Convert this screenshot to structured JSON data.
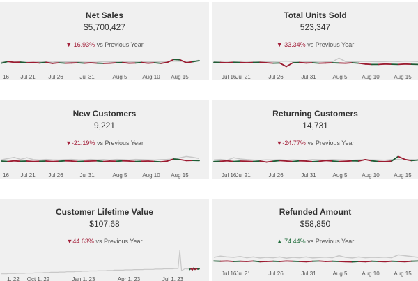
{
  "colors": {
    "current_year_line": "#1f5c35",
    "previous_year_line": "#c8c8c8",
    "decline_line": "#9b1b30",
    "decline_text": "#a3203a",
    "increase_text": "#1f6b3a",
    "card_background": "#f0f0f0"
  },
  "comparison_suffix": "vs Previous Year",
  "chart_data": [
    {
      "type": "line",
      "title": "Net Sales",
      "kpi_value": "$5,700,427",
      "change": {
        "direction": "down",
        "text": "16.93%"
      },
      "x_ticks": [
        "16",
        "Jul 21",
        "Jul 26",
        "Jul 31",
        "Aug 5",
        "Aug 10",
        "Aug 15"
      ],
      "ylim": [
        0,
        100
      ],
      "series": [
        {
          "role": "previous_year",
          "values": [
            52,
            58,
            56,
            54,
            53,
            52,
            55,
            54,
            53,
            56,
            54,
            55,
            54,
            53,
            52,
            53,
            56,
            55,
            54,
            53,
            55,
            56,
            57,
            54,
            55,
            54,
            56,
            58,
            57,
            56,
            58,
            62
          ]
        },
        {
          "role": "current_year",
          "values": [
            48,
            56,
            52,
            53,
            50,
            51,
            49,
            52,
            47,
            50,
            48,
            49,
            50,
            48,
            50,
            48,
            47,
            48,
            50,
            51,
            48,
            49,
            51,
            48,
            50,
            47,
            52,
            66,
            64,
            50,
            55,
            60
          ]
        }
      ]
    },
    {
      "type": "line",
      "title": "Total Units Sold",
      "kpi_value": "523,347",
      "change": {
        "direction": "down",
        "text": "33.34%"
      },
      "x_ticks": [
        "Jul 16",
        "Jul 21",
        "Jul 26",
        "Jul 31",
        "Aug 5",
        "Aug 10",
        "Aug 15"
      ],
      "ylim": [
        0,
        100
      ],
      "series": [
        {
          "role": "previous_year",
          "values": [
            57,
            58,
            57,
            56,
            58,
            57,
            56,
            57,
            55,
            56,
            57,
            58,
            56,
            57,
            56,
            55,
            57,
            56,
            55,
            72,
            56,
            55,
            56,
            57,
            56,
            55,
            56,
            57,
            56,
            58,
            57,
            56
          ]
        },
        {
          "role": "current_year",
          "values": [
            52,
            51,
            50,
            52,
            51,
            50,
            51,
            52,
            50,
            48,
            49,
            32,
            50,
            51,
            49,
            50,
            48,
            49,
            50,
            49,
            48,
            50,
            48,
            44,
            42,
            42,
            44,
            43,
            42,
            44,
            43,
            42
          ]
        }
      ]
    },
    {
      "type": "line",
      "title": "New Customers",
      "kpi_value": "9,221",
      "change": {
        "direction": "down",
        "text": "-21.19%"
      },
      "x_ticks": [
        "16",
        "Jul 21",
        "Jul 26",
        "Jul 31",
        "Aug 5",
        "Aug 10",
        "Aug 15"
      ],
      "ylim": [
        0,
        100
      ],
      "series": [
        {
          "role": "previous_year",
          "values": [
            56,
            62,
            68,
            58,
            66,
            57,
            55,
            58,
            56,
            55,
            57,
            58,
            56,
            55,
            58,
            56,
            57,
            55,
            58,
            57,
            55,
            58,
            57,
            56,
            55,
            57,
            58,
            60,
            66,
            72,
            68,
            62
          ]
        },
        {
          "role": "current_year",
          "values": [
            50,
            48,
            51,
            49,
            50,
            48,
            49,
            50,
            48,
            49,
            51,
            50,
            48,
            49,
            50,
            51,
            48,
            50,
            49,
            51,
            50,
            48,
            49,
            50,
            48,
            46,
            50,
            60,
            57,
            52,
            53,
            52
          ]
        }
      ]
    },
    {
      "type": "line",
      "title": "Returning Customers",
      "kpi_value": "14,731",
      "change": {
        "direction": "down",
        "text": "-24.77%"
      },
      "x_ticks": [
        "Jul 16",
        "Jul 21",
        "Jul 26",
        "Jul 31",
        "Aug 5",
        "Aug 10",
        "Aug 15"
      ],
      "ylim": [
        0,
        100
      ],
      "series": [
        {
          "role": "previous_year",
          "values": [
            56,
            58,
            54,
            66,
            60,
            57,
            55,
            54,
            56,
            55,
            57,
            54,
            56,
            55,
            54,
            57,
            56,
            55,
            57,
            56,
            55,
            54,
            56,
            57,
            56,
            55,
            54,
            57,
            58,
            56,
            57,
            56
          ]
        },
        {
          "role": "current_year",
          "values": [
            48,
            49,
            51,
            48,
            50,
            49,
            48,
            50,
            45,
            49,
            52,
            50,
            48,
            51,
            50,
            47,
            49,
            52,
            50,
            48,
            49,
            51,
            50,
            57,
            51,
            48,
            47,
            50,
            72,
            58,
            52,
            55
          ]
        }
      ]
    },
    {
      "type": "line",
      "title": "Customer Lifetime Value",
      "kpi_value": "$107.68",
      "change": {
        "direction": "down",
        "text": "44.63%"
      },
      "x_ticks": [
        "1, 22",
        "Oct 1, 22",
        "Jan 1, 23",
        "Apr 1, 23",
        "Jul 1, 23"
      ],
      "ylim": [
        0,
        100
      ],
      "series": [
        {
          "role": "previous_year",
          "values": [
            6,
            6,
            6,
            6,
            7,
            7,
            7,
            7,
            7,
            8,
            8,
            8,
            8,
            8,
            9,
            9,
            9,
            9,
            9,
            10,
            10,
            10,
            10,
            10,
            11,
            11,
            11,
            11,
            12,
            12,
            12,
            12,
            12,
            13,
            13,
            13,
            13,
            14,
            14,
            14,
            14,
            14,
            15,
            15,
            15,
            15,
            16,
            16,
            16,
            16,
            17,
            17,
            17,
            17,
            17,
            18,
            18,
            18,
            18,
            18,
            19,
            19,
            19,
            19,
            20,
            20,
            20,
            20,
            20,
            20,
            21,
            21,
            21,
            21,
            21,
            22,
            22,
            22,
            22,
            22,
            22,
            23,
            23,
            23,
            23,
            23,
            23,
            24,
            24,
            24,
            24,
            24,
            25,
            25,
            25,
            25,
            25,
            25,
            26,
            26,
            26,
            95,
            18,
            22,
            26,
            24,
            25,
            24,
            23,
            24,
            25,
            24,
            25
          ]
        },
        {
          "role": "current_year",
          "values": [
            22,
            26,
            21,
            28,
            23,
            26,
            24,
            25
          ]
        }
      ]
    },
    {
      "type": "line",
      "title": "Refunded Amount",
      "kpi_value": "$58,850",
      "change": {
        "direction": "up",
        "text": "74.44%"
      },
      "x_ticks": [
        "Jul 16",
        "Jul 21",
        "Jul 26",
        "Jul 31",
        "Aug 5",
        "Aug 10",
        "Aug 15"
      ],
      "ylim": [
        0,
        100
      ],
      "series": [
        {
          "role": "previous_year",
          "values": [
            60,
            66,
            62,
            60,
            64,
            58,
            62,
            57,
            60,
            58,
            62,
            56,
            60,
            58,
            62,
            57,
            59,
            61,
            58,
            68,
            60,
            57,
            62,
            58,
            60,
            59,
            61,
            58,
            72,
            68,
            64,
            60
          ]
        },
        {
          "role": "current_year",
          "values": [
            42,
            41,
            42,
            40,
            41,
            40,
            42,
            39,
            40,
            41,
            40,
            42,
            41,
            40,
            39,
            41,
            42,
            40,
            41,
            40,
            39,
            38,
            40,
            39,
            41,
            40,
            39,
            41,
            40,
            39,
            41,
            42
          ]
        }
      ]
    }
  ]
}
